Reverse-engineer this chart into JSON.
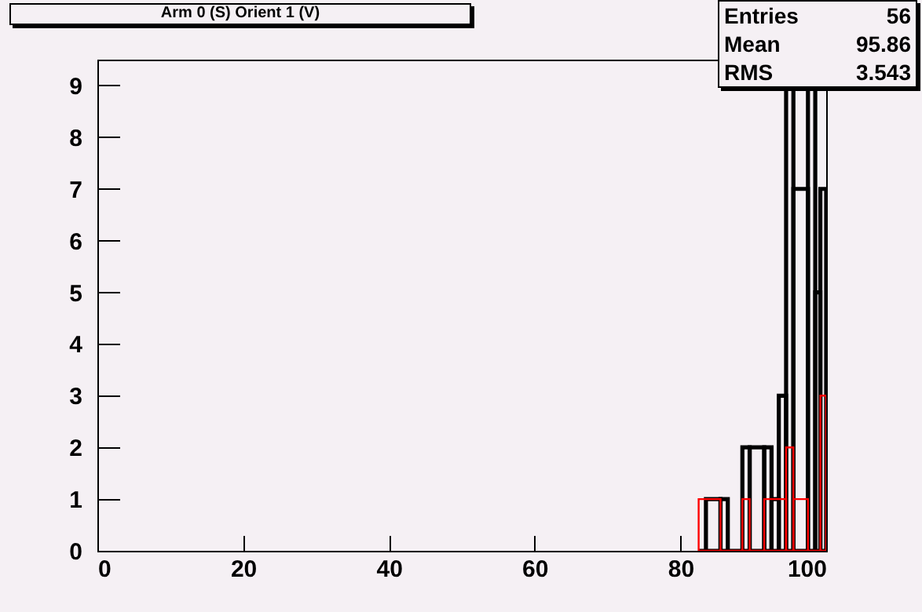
{
  "chart_data": {
    "type": "histogram",
    "title": "Arm 0 (S) Orient 1 (V)",
    "annotations": [
      "Entries 56",
      "Mean 95.86",
      "RMS 3.543"
    ],
    "bins": [
      82.5,
      83.5,
      85.5,
      86.5,
      88.5,
      89.5,
      91.5,
      92.5,
      93.5,
      94.5,
      95.5,
      97.5,
      98.5,
      99.2,
      100
    ],
    "series": [
      {
        "color": "#000000",
        "values": [
          0,
          1,
          1,
          0,
          2,
          2,
          2,
          1,
          3,
          9,
          7,
          9,
          5,
          7
        ]
      },
      {
        "color": "#ff0000",
        "bins": [
          82.5,
          85.5,
          88.5,
          89.5,
          91.5,
          94.5,
          95.5,
          97.5,
          99.2,
          100
        ],
        "values": [
          1,
          0,
          1,
          0,
          1,
          2,
          1,
          0,
          3
        ]
      }
    ],
    "xlim": [
      0,
      100
    ],
    "xticks": [
      0,
      20,
      40,
      60,
      80,
      100
    ],
    "ylim": [
      0,
      9.5
    ],
    "yticks": [
      0,
      1,
      2,
      3,
      4,
      5,
      6,
      7,
      8,
      9
    ],
    "grid": false
  }
}
